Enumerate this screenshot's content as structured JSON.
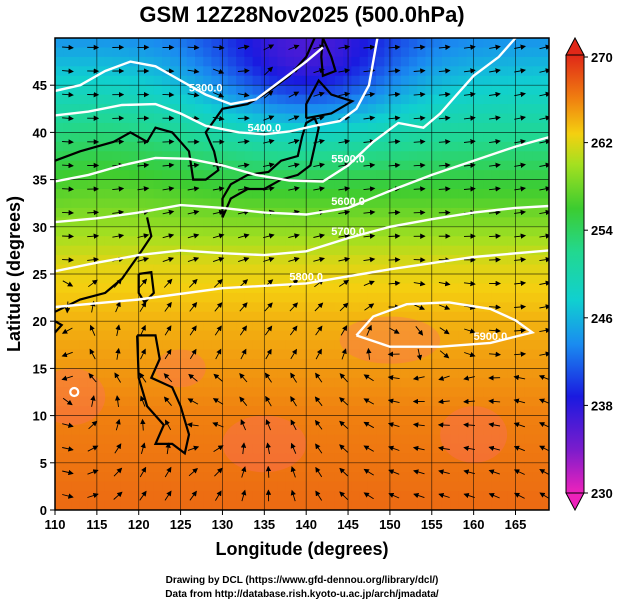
{
  "chart_data": {
    "type": "heatmap",
    "title": "GSM 12Z28Nov2025 (500.0hPa)",
    "xlabel": "Longitude (degrees)",
    "ylabel": "Latitude  (degrees)",
    "xlim": [
      110,
      169
    ],
    "ylim": [
      0,
      50
    ],
    "xticks": [
      "110",
      "115",
      "120",
      "125",
      "130",
      "135",
      "140",
      "145",
      "150",
      "155",
      "160",
      "165"
    ],
    "yticks": [
      "0",
      "5",
      "10",
      "15",
      "20",
      "25",
      "30",
      "35",
      "40",
      "45"
    ],
    "colorbar": {
      "min": 230,
      "max": 270,
      "labels": [
        "270",
        "262",
        "254",
        "246",
        "238",
        "230"
      ],
      "label_values": [
        270,
        262,
        254,
        246,
        238,
        230
      ]
    },
    "temperature_field": [
      {
        "lat": 50,
        "value": 244
      },
      {
        "lat": 46,
        "value": 247
      },
      {
        "lat": 42,
        "value": 250
      },
      {
        "lat": 38,
        "value": 253
      },
      {
        "lat": 34,
        "value": 256
      },
      {
        "lat": 30,
        "value": 259
      },
      {
        "lat": 26,
        "value": 262
      },
      {
        "lat": 20,
        "value": 264
      },
      {
        "lat": 10,
        "value": 266
      },
      {
        "lat": 0,
        "value": 267
      }
    ],
    "contours": [
      {
        "label": "5300.0",
        "points": [
          [
            110,
            44.4
          ],
          [
            113,
            45.0
          ],
          [
            116,
            46.5
          ],
          [
            119,
            47.5
          ],
          [
            122,
            47.0
          ],
          [
            125,
            45.5
          ],
          [
            128,
            44.0
          ],
          [
            131,
            43.0
          ],
          [
            134,
            43.5
          ],
          [
            137,
            45.5
          ],
          [
            140,
            47.5
          ],
          [
            142,
            49.0
          ]
        ]
      },
      {
        "label": "5400.0",
        "points": [
          [
            110,
            41.8
          ],
          [
            114,
            42.2
          ],
          [
            118,
            42.9
          ],
          [
            122,
            43.0
          ],
          [
            125,
            42.0
          ],
          [
            128,
            40.7
          ],
          [
            132,
            40.0
          ],
          [
            135,
            39.8
          ],
          [
            138,
            40.1
          ],
          [
            141,
            40.7
          ],
          [
            144,
            41.2
          ],
          [
            146,
            42.5
          ],
          [
            147.5,
            45
          ],
          [
            148.5,
            50
          ]
        ]
      },
      {
        "label": "5500.0",
        "points": [
          [
            110,
            34.8
          ],
          [
            114,
            35.5
          ],
          [
            118,
            36.5
          ],
          [
            122,
            37.3
          ],
          [
            126,
            37.2
          ],
          [
            130,
            36.5
          ],
          [
            134,
            35.5
          ],
          [
            138,
            34.9
          ],
          [
            142,
            34.8
          ],
          [
            145,
            36.5
          ],
          [
            148,
            39.0
          ],
          [
            151,
            41.0
          ],
          [
            154,
            40.5
          ],
          [
            156,
            42.0
          ],
          [
            158,
            44.0
          ],
          [
            160,
            46.0
          ],
          [
            163,
            48.0
          ],
          [
            165,
            50
          ]
        ]
      },
      {
        "label": "5600.0",
        "points": [
          [
            110,
            30.5
          ],
          [
            115,
            30.9
          ],
          [
            120,
            31.5
          ],
          [
            125,
            32.3
          ],
          [
            130,
            32.0
          ],
          [
            135,
            31.5
          ],
          [
            140,
            31.3
          ],
          [
            145,
            32.0
          ],
          [
            150,
            33.8
          ],
          [
            155,
            35.5
          ],
          [
            160,
            37.0
          ],
          [
            165,
            38.5
          ],
          [
            169,
            39.5
          ]
        ]
      },
      {
        "label": "5700.0",
        "points": [
          [
            110,
            25.3
          ],
          [
            115,
            26.2
          ],
          [
            120,
            27.0
          ],
          [
            125,
            27.5
          ],
          [
            130,
            27.2
          ],
          [
            135,
            27.0
          ],
          [
            140,
            27.4
          ],
          [
            145,
            28.8
          ],
          [
            150,
            30.0
          ],
          [
            155,
            30.8
          ],
          [
            160,
            31.5
          ],
          [
            165,
            32.0
          ],
          [
            169,
            32.2
          ]
        ]
      },
      {
        "label": "5800.0",
        "points": [
          [
            110,
            21.5
          ],
          [
            120,
            22.3
          ],
          [
            130,
            23.5
          ],
          [
            140,
            24.0
          ],
          [
            150,
            25.5
          ],
          [
            160,
            26.8
          ],
          [
            169,
            27.5
          ]
        ]
      },
      {
        "label": "5900.0",
        "points": [
          [
            146,
            18.5
          ],
          [
            148,
            20.5
          ],
          [
            152,
            21.8
          ],
          [
            157,
            22.0
          ],
          [
            162,
            21.3
          ],
          [
            165,
            20.1
          ],
          [
            167,
            18.8
          ],
          [
            162,
            17.7
          ],
          [
            156,
            17.3
          ],
          [
            150,
            17.3
          ],
          [
            146,
            18.5
          ]
        ]
      }
    ]
  },
  "credits": {
    "line1": "Drawing by DCL (https://www.gfd-dennou.org/library/dcl/)",
    "line2": "Data from http://database.rish.kyoto-u.ac.jp/arch/jmadata/"
  }
}
